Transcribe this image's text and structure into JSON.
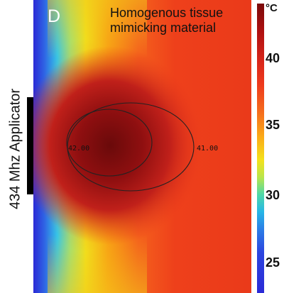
{
  "panel_letter": "D",
  "material_label": "Homogenous tissue mimicking material",
  "applicator_label": "434 Mhz Applicator",
  "contours": [
    {
      "label": "42.00"
    },
    {
      "label": "41.00"
    }
  ],
  "colorbar": {
    "unit": "°C",
    "ticks": [
      "40",
      "35",
      "30",
      "25"
    ]
  },
  "colors": {
    "hot_core": "#6a0a0a",
    "field": "#ec3a1c",
    "cold": "#2a2ad6"
  }
}
